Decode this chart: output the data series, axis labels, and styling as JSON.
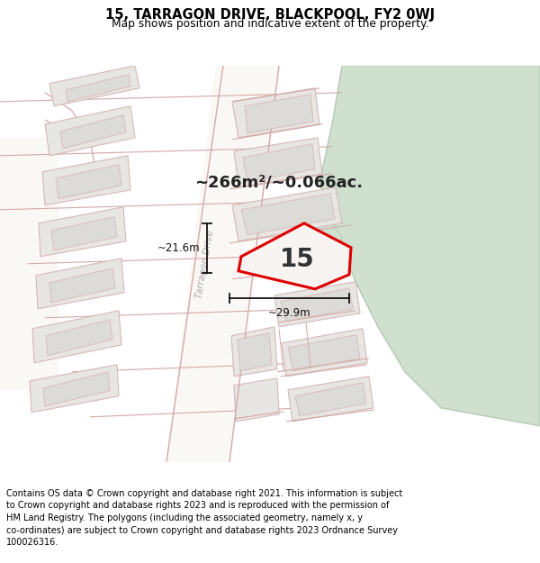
{
  "title_line1": "15, TARRAGON DRIVE, BLACKPOOL, FY2 0WJ",
  "title_line2": "Map shows position and indicative extent of the property.",
  "area_label": "~266m²/~0.066ac.",
  "number_label": "15",
  "dim_width": "~29.9m",
  "dim_height": "~21.6m",
  "road_label": "Tarragon Drive",
  "footer_lines": [
    "Contains OS data © Crown copyright and database right 2021. This information is subject",
    "to Crown copyright and database rights 2023 and is reproduced with the permission of",
    "HM Land Registry. The polygons (including the associated geometry, namely x, y",
    "co-ordinates) are subject to Crown copyright and database rights 2023 Ordnance Survey",
    "100026316."
  ],
  "map_bg": "#f2f0ed",
  "building_fill": "#e8e6e2",
  "building_border": "#d4b8b8",
  "inner_fill": "#dddbd7",
  "road_lines": "#d4a8a8",
  "green_fill": "#cfe0cf",
  "green_border": "#b5c8b5",
  "highlight_color": "#dd0000",
  "highlight_fill": "#f8f4f2",
  "dim_color": "#111111",
  "text_color": "#222222",
  "footer_bg": "#ffffff",
  "title_bg": "#ffffff",
  "road_fill": "#faf8f5"
}
